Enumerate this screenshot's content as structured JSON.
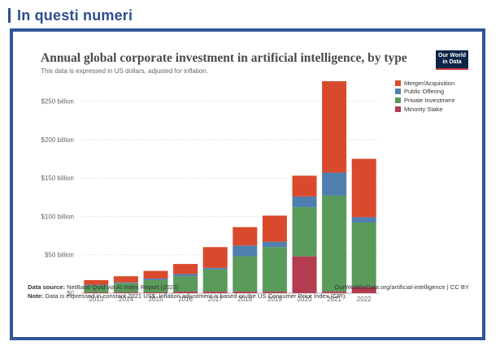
{
  "section": {
    "title": "In questi numeri"
  },
  "logo": {
    "line1": "Our World",
    "line2": "in Data"
  },
  "footer": {
    "source_label": "Data source:",
    "source_text": "NetBase Quid via AI Index Report (2023)",
    "attribution": "OurWorldInData.org/artificial-intelligence | CC BY",
    "note_label": "Note:",
    "note_text": "Data is expressed in constant 2021 US$. Inflation adjustment is based on the US Consumer Price Index (CPI)."
  },
  "colors": {
    "merger": "#d94a2c",
    "public": "#4f7fae",
    "private": "#5a9a5a",
    "minority": "#b33c4f",
    "frame": "#2f5597"
  },
  "chart_data": {
    "type": "bar",
    "stacked": true,
    "title": "Annual global corporate investment in artificial intelligence, by type",
    "subtitle": "This data is expressed in US dollars, adjusted for inflation.",
    "categories": [
      "2013",
      "2014",
      "2015",
      "2016",
      "2017",
      "2018",
      "2019",
      "2020",
      "2021",
      "2022"
    ],
    "y_ticks": [
      {
        "value": 0,
        "label": "$0"
      },
      {
        "value": 50,
        "label": "$50 billion"
      },
      {
        "value": 100,
        "label": "$100 billion"
      },
      {
        "value": 150,
        "label": "$150 billion"
      },
      {
        "value": 200,
        "label": "$200 billion"
      },
      {
        "value": 250,
        "label": "$250 billion"
      }
    ],
    "ylim": [
      0,
      275
    ],
    "grid": true,
    "legend_position": "right",
    "series": [
      {
        "name": "Minority Stake",
        "color": "#b33c4f",
        "values": [
          1,
          1,
          1,
          2,
          2,
          2,
          2,
          48,
          2,
          8
        ]
      },
      {
        "name": "Private Investment",
        "color": "#5a9a5a",
        "values": [
          9,
          12,
          16,
          20,
          29,
          46,
          58,
          64,
          125,
          84
        ]
      },
      {
        "name": "Public Offering",
        "color": "#4f7fae",
        "values": [
          1,
          1,
          2,
          3,
          2,
          14,
          7,
          14,
          30,
          7
        ]
      },
      {
        "name": "Merger/Acquisition",
        "color": "#d94a2c",
        "values": [
          6,
          8,
          10,
          13,
          27,
          24,
          34,
          27,
          119,
          76
        ]
      }
    ],
    "legend_order": [
      "Merger/Acquisition",
      "Public Offering",
      "Private Investment",
      "Minority Stake"
    ]
  }
}
